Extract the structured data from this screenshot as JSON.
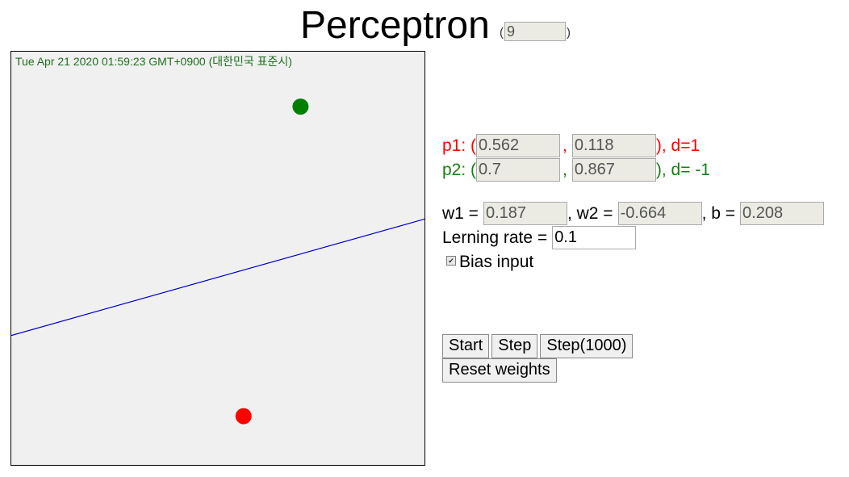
{
  "header": {
    "title": "Perceptron",
    "paren_open": "(",
    "paren_close": ")",
    "counter_value": "9"
  },
  "canvas": {
    "timestamp": "Tue Apr 21 2020 01:59:23 GMT+0900 (대한민국 표준시)",
    "background": "#f0f0f0",
    "line_color": "#0000cc",
    "point1_color": "#ff0000",
    "point2_color": "#008000"
  },
  "points": {
    "p1": {
      "prefix": "p1: (",
      "sep": ",",
      "x": "0.562",
      "y": "0.118",
      "suffix": "), d=1",
      "x_val": 0.562,
      "y_val": 0.118
    },
    "p2": {
      "prefix": "p2: (",
      "sep": ",",
      "x": "0.7",
      "y": "0.867",
      "suffix": "), d= -1",
      "x_val": 0.7,
      "y_val": 0.867
    }
  },
  "weights": {
    "w1_label": "w1 =",
    "w1": "0.187",
    "w2_label": ", w2 =",
    "w2": "-0.664",
    "b_label": ", b =",
    "b": "0.208",
    "w1_val": 0.187,
    "w2_val": -0.664,
    "b_val": 0.208
  },
  "learning": {
    "label": "Lerning rate =",
    "value": "0.1"
  },
  "bias": {
    "label": "Bias input",
    "checked": true,
    "check_glyph": "✔"
  },
  "buttons": {
    "start": "Start",
    "step": "Step",
    "step1000": "Step(1000)",
    "reset": "Reset weights"
  }
}
